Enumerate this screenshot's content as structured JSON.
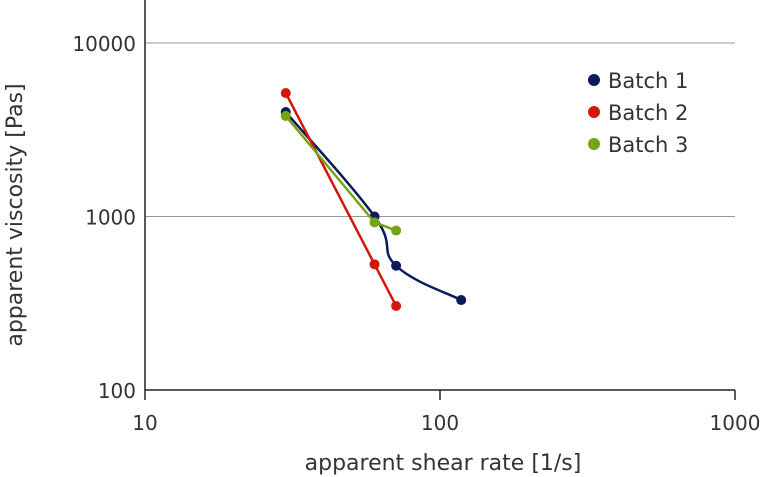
{
  "chart_data": {
    "type": "line",
    "title": "",
    "xlabel": "apparent shear rate [1/s]",
    "ylabel": "apparent viscosity [Pas]",
    "xscale": "log",
    "yscale": "log",
    "xlim": [
      10,
      1000
    ],
    "ylim": [
      100,
      18000
    ],
    "xticks": [
      10,
      100,
      1000
    ],
    "xtick_labels": [
      "10",
      "100",
      "1000"
    ],
    "yticks": [
      100,
      1000,
      10000
    ],
    "ytick_labels": [
      "100",
      "1000",
      "10000"
    ],
    "grid": "horizontal at major y ticks",
    "legend_position": "top-right",
    "series": [
      {
        "name": "Batch 1",
        "color": "#0b1a5a",
        "smooth": true,
        "x": [
          30,
          60,
          71,
          118
        ],
        "y": [
          4000,
          1000,
          520,
          330
        ]
      },
      {
        "name": "Batch 2",
        "color": "#d2180c",
        "smooth": false,
        "x": [
          30,
          60,
          71
        ],
        "y": [
          5150,
          530,
          305
        ]
      },
      {
        "name": "Batch 3",
        "color": "#76a214",
        "smooth": false,
        "x": [
          30,
          60,
          71
        ],
        "y": [
          3800,
          925,
          830
        ]
      }
    ]
  }
}
